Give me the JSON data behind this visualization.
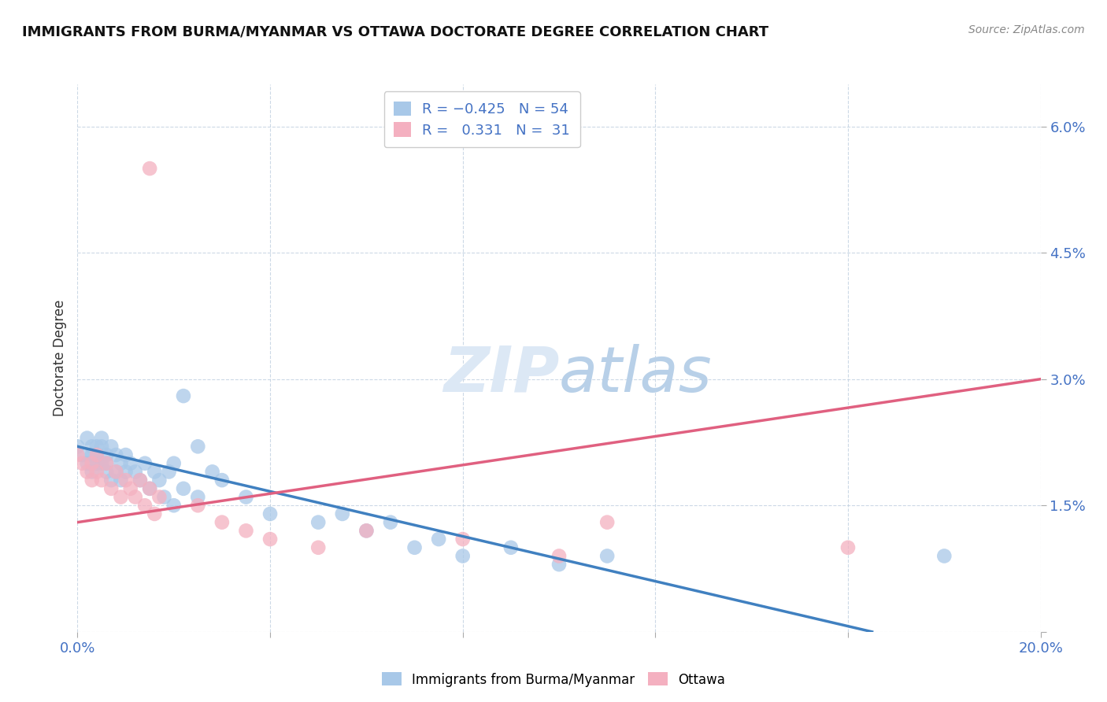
{
  "title": "IMMIGRANTS FROM BURMA/MYANMAR VS OTTAWA DOCTORATE DEGREE CORRELATION CHART",
  "source": "Source: ZipAtlas.com",
  "ylabel": "Doctorate Degree",
  "xlim": [
    0.0,
    0.2
  ],
  "ylim": [
    0.0,
    0.065
  ],
  "xticks": [
    0.0,
    0.04,
    0.08,
    0.12,
    0.16,
    0.2
  ],
  "yticks": [
    0.0,
    0.015,
    0.03,
    0.045,
    0.06
  ],
  "color_blue": "#A8C8E8",
  "color_pink": "#F4B0C0",
  "line_blue": "#4080C0",
  "line_pink": "#E06080",
  "watermark_color": "#dce8f5",
  "axis_color": "#4472C4",
  "blue_scatter_x": [
    0.0,
    0.001,
    0.002,
    0.002,
    0.003,
    0.003,
    0.003,
    0.004,
    0.004,
    0.004,
    0.005,
    0.005,
    0.005,
    0.006,
    0.006,
    0.006,
    0.007,
    0.007,
    0.008,
    0.008,
    0.009,
    0.009,
    0.01,
    0.01,
    0.011,
    0.012,
    0.013,
    0.014,
    0.015,
    0.016,
    0.017,
    0.018,
    0.019,
    0.02,
    0.022,
    0.025,
    0.028,
    0.03,
    0.035,
    0.04,
    0.05,
    0.055,
    0.06,
    0.065,
    0.07,
    0.075,
    0.08,
    0.09,
    0.1,
    0.11,
    0.02,
    0.022,
    0.18,
    0.025
  ],
  "blue_scatter_y": [
    0.022,
    0.021,
    0.023,
    0.02,
    0.022,
    0.021,
    0.019,
    0.022,
    0.02,
    0.021,
    0.023,
    0.02,
    0.022,
    0.021,
    0.019,
    0.02,
    0.022,
    0.018,
    0.021,
    0.019,
    0.02,
    0.018,
    0.019,
    0.021,
    0.02,
    0.019,
    0.018,
    0.02,
    0.017,
    0.019,
    0.018,
    0.016,
    0.019,
    0.02,
    0.017,
    0.022,
    0.019,
    0.018,
    0.016,
    0.014,
    0.013,
    0.014,
    0.012,
    0.013,
    0.01,
    0.011,
    0.009,
    0.01,
    0.008,
    0.009,
    0.015,
    0.028,
    0.009,
    0.016
  ],
  "pink_scatter_x": [
    0.0,
    0.001,
    0.002,
    0.003,
    0.003,
    0.004,
    0.004,
    0.005,
    0.006,
    0.007,
    0.008,
    0.009,
    0.01,
    0.011,
    0.012,
    0.013,
    0.014,
    0.015,
    0.016,
    0.017,
    0.025,
    0.03,
    0.035,
    0.04,
    0.05,
    0.06,
    0.08,
    0.1,
    0.11,
    0.16,
    0.015
  ],
  "pink_scatter_y": [
    0.021,
    0.02,
    0.019,
    0.02,
    0.018,
    0.021,
    0.019,
    0.018,
    0.02,
    0.017,
    0.019,
    0.016,
    0.018,
    0.017,
    0.016,
    0.018,
    0.015,
    0.017,
    0.014,
    0.016,
    0.015,
    0.013,
    0.012,
    0.011,
    0.01,
    0.012,
    0.011,
    0.009,
    0.013,
    0.01,
    0.055
  ],
  "blue_line_x": [
    0.0,
    0.165
  ],
  "blue_line_y": [
    0.022,
    0.0
  ],
  "pink_line_x": [
    0.0,
    0.2
  ],
  "pink_line_y": [
    0.013,
    0.03
  ]
}
